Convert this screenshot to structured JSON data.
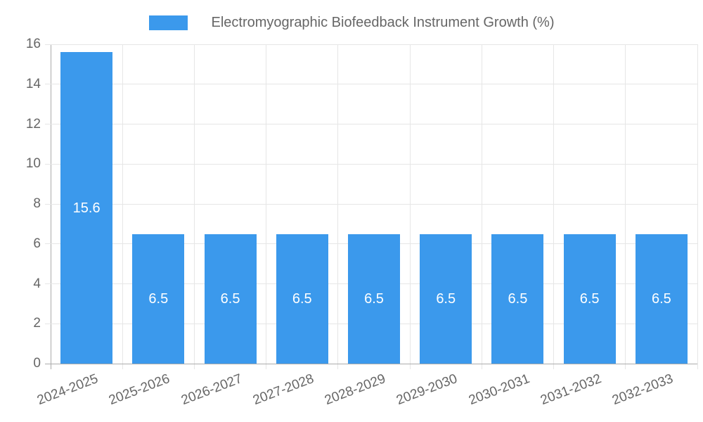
{
  "chart_data": {
    "type": "bar",
    "title": "Electromyographic Biofeedback Instrument Growth (%)",
    "categories": [
      "2024-2025",
      "2025-2026",
      "2026-2027",
      "2027-2028",
      "2028-2029",
      "2029-2030",
      "2030-2031",
      "2031-2032",
      "2032-2033"
    ],
    "values": [
      15.6,
      6.5,
      6.5,
      6.5,
      6.5,
      6.5,
      6.5,
      6.5,
      6.5
    ],
    "value_labels": [
      "15.6",
      "6.5",
      "6.5",
      "6.5",
      "6.5",
      "6.5",
      "6.5",
      "6.5",
      "6.5"
    ],
    "xlabel": "",
    "ylabel": "",
    "ylim": [
      0,
      16
    ],
    "ytick_step": 2,
    "grid": true,
    "legend_position": "top",
    "x_tick_rotation_deg": -21,
    "colors": {
      "bar": "#3b99ec",
      "value_label": "#ffffff",
      "tick_text": "#666666",
      "legend_text": "#666666",
      "gridline": "#e6e6e6",
      "axis_line": "#ababab"
    }
  }
}
